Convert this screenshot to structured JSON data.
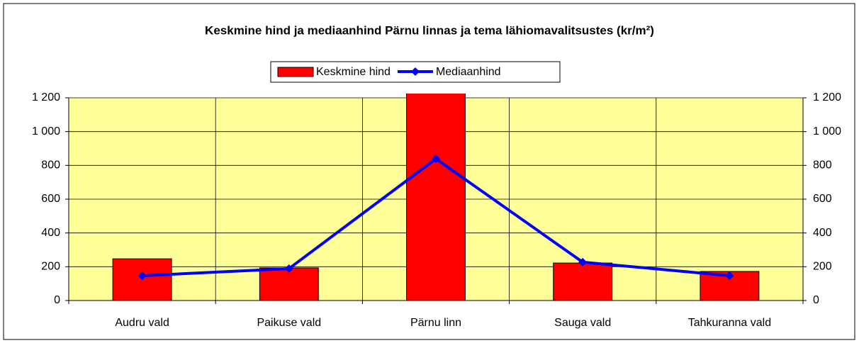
{
  "chart_data": {
    "type": "bar",
    "title": "Keskmine hind ja mediaanhind Pärnu linnas ja tema lähiomavalitsustes (kr/m²)",
    "categories": [
      "Audru vald",
      "Paikuse vald",
      "Pärnu linn",
      "Sauga vald",
      "Tahkuranna vald"
    ],
    "series": [
      {
        "name": "Keskmine hind",
        "type": "bar",
        "color": "#ff0000",
        "values": [
          247,
          193,
          1250,
          222,
          172
        ]
      },
      {
        "name": "Mediaanhind",
        "type": "line",
        "axis": "y2",
        "color": "#0000ff",
        "values": [
          147,
          189,
          839,
          227,
          147
        ]
      }
    ],
    "ylim": [
      0,
      1200
    ],
    "yticks": [
      0,
      200,
      400,
      600,
      800,
      {
        "value": 1000,
        "label": "1 000"
      },
      {
        "value": 1200,
        "label": "1 200"
      }
    ],
    "y2lim": [
      0,
      1200
    ],
    "y2ticks": [
      0,
      200,
      400,
      600,
      800,
      {
        "value": 1000,
        "label": "1 000"
      },
      {
        "value": 1200,
        "label": "1 200"
      }
    ],
    "grid": true,
    "legend": "top",
    "plot_background": "#ffff99"
  }
}
